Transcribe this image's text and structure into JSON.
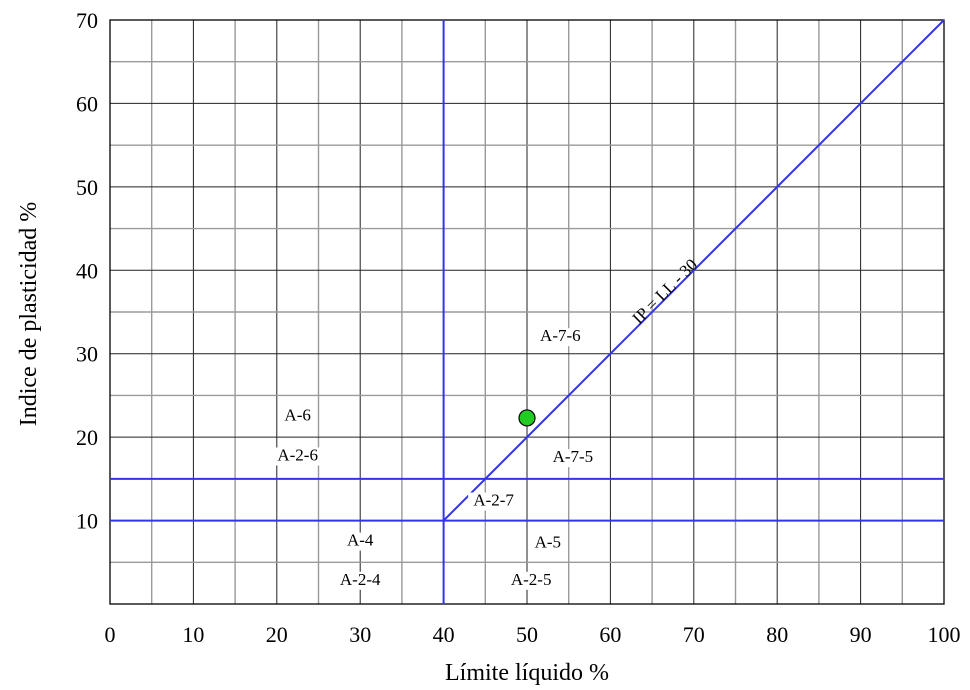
{
  "chart_data": {
    "type": "scatter",
    "xlabel": "Límite líquido %",
    "ylabel": "Indice de plasticidad %",
    "xlim": [
      0,
      100
    ],
    "ylim": [
      0,
      70
    ],
    "x_ticks": [
      "0",
      "10",
      "20",
      "30",
      "40",
      "50",
      "60",
      "70",
      "80",
      "90",
      "100"
    ],
    "y_ticks": [
      "10",
      "20",
      "30",
      "40",
      "50",
      "60",
      "70"
    ],
    "grid": true,
    "points": [
      {
        "x": 50,
        "y": 22.3,
        "color": "#22cc22"
      }
    ],
    "boundaries": [
      {
        "x": [
          40,
          40
        ],
        "y": [
          0,
          70
        ],
        "color": "#3333ee"
      },
      {
        "x": [
          0,
          100
        ],
        "y": [
          10,
          10
        ],
        "color": "#3333ee"
      },
      {
        "x": [
          0,
          100
        ],
        "y": [
          15,
          15
        ],
        "color": "#3333ee"
      },
      {
        "x": [
          40,
          100
        ],
        "y": [
          10,
          70
        ],
        "color": "#3333ee"
      }
    ],
    "line_label": {
      "text": "IP = LL - 30",
      "x": 67,
      "y": 37,
      "angle": -45
    },
    "zones": [
      {
        "text": "A-7-6",
        "x": 54,
        "y": 31.5
      },
      {
        "text": "A-6",
        "x": 22.5,
        "y": 22
      },
      {
        "text": "A-2-6",
        "x": 22.5,
        "y": 17.2
      },
      {
        "text": "A-7-5",
        "x": 55.5,
        "y": 17
      },
      {
        "text": "A-2-7",
        "x": 46,
        "y": 11.8
      },
      {
        "text": "A-4",
        "x": 30,
        "y": 7
      },
      {
        "text": "A-5",
        "x": 52.5,
        "y": 6.8
      },
      {
        "text": "A-2-4",
        "x": 30,
        "y": 2.3
      },
      {
        "text": "A-2-5",
        "x": 50.5,
        "y": 2.3
      }
    ]
  }
}
